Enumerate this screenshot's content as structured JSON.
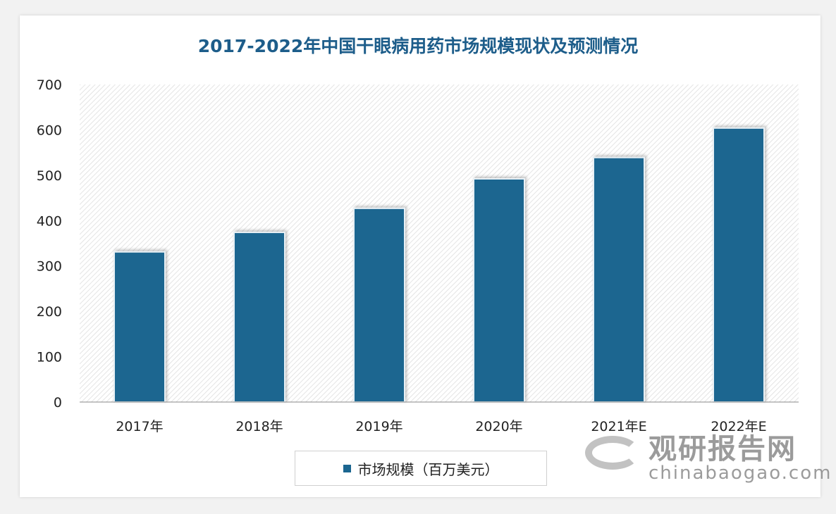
{
  "chart_data": {
    "type": "bar",
    "title": "2017-2022年中国干眼病用药市场规模现状及预测情况",
    "categories": [
      "2017年",
      "2018年",
      "2019年",
      "2020年",
      "2021年E",
      "2022年E"
    ],
    "series": [
      {
        "name": "市场规模（百万美元）",
        "values": [
          331,
          374,
          427,
          492,
          539,
          604
        ],
        "color": "#1b6690"
      }
    ],
    "ylim": [
      0,
      700
    ],
    "yticks": [
      0,
      100,
      200,
      300,
      400,
      500,
      600,
      700
    ],
    "grid": false,
    "background": "diagonal-hatch",
    "legend": "bottom"
  },
  "watermark": {
    "cn": "观研报告网",
    "en": "chinabaogao.com"
  }
}
